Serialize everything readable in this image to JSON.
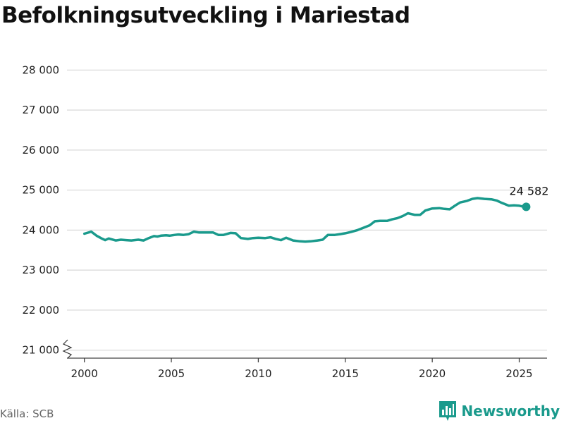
{
  "title": "Befolkningsutveckling i Mariestad",
  "source": "Källa: SCB",
  "brand": {
    "name": "Newsworthy",
    "icon": "bar-chart-icon",
    "color": "#1a9a8c"
  },
  "end_label": "24 582",
  "chart_data": {
    "type": "line",
    "title": "Befolkningsutveckling i Mariestad",
    "xlabel": "",
    "ylabel": "",
    "xlim": [
      1999.0,
      2026.6
    ],
    "ylim": [
      20800,
      28200
    ],
    "y_axis_break": true,
    "grid": "horizontal",
    "x_ticks": [
      2000,
      2005,
      2010,
      2015,
      2020,
      2025
    ],
    "x_tick_labels": [
      "2000",
      "2005",
      "2010",
      "2015",
      "2020",
      "2025"
    ],
    "y_ticks": [
      21000,
      22000,
      23000,
      24000,
      25000,
      26000,
      27000,
      28000
    ],
    "y_tick_labels": [
      "21 000",
      "22 000",
      "23 000",
      "24 000",
      "25 000",
      "26 000",
      "27 000",
      "28 000"
    ],
    "line_color": "#1a9a8c",
    "series": [
      {
        "name": "",
        "x": [
          2000.0,
          2000.4,
          2000.7,
          2001.0,
          2001.2,
          2001.4,
          2001.8,
          2002.1,
          2002.4,
          2002.7,
          2003.1,
          2003.4,
          2003.7,
          2004.0,
          2004.2,
          2004.4,
          2004.7,
          2004.9,
          2005.2,
          2005.4,
          2005.7,
          2006.0,
          2006.3,
          2006.6,
          2007.0,
          2007.4,
          2007.7,
          2008.0,
          2008.4,
          2008.7,
          2009.0,
          2009.4,
          2009.7,
          2010.0,
          2010.4,
          2010.7,
          2011.0,
          2011.3,
          2011.6,
          2012.0,
          2012.4,
          2012.7,
          2013.0,
          2013.4,
          2013.7,
          2014.0,
          2014.4,
          2014.7,
          2015.0,
          2015.3,
          2015.7,
          2016.0,
          2016.4,
          2016.7,
          2017.0,
          2017.4,
          2017.7,
          2018.0,
          2018.3,
          2018.6,
          2019.0,
          2019.3,
          2019.6,
          2020.0,
          2020.4,
          2020.7,
          2021.0,
          2021.3,
          2021.6,
          2022.0,
          2022.3,
          2022.6,
          2023.0,
          2023.4,
          2023.7,
          2024.0,
          2024.4,
          2024.7,
          2025.0,
          2025.2,
          2025.4
        ],
        "y": [
          23910,
          23960,
          23860,
          23790,
          23750,
          23790,
          23740,
          23760,
          23750,
          23740,
          23760,
          23740,
          23800,
          23850,
          23840,
          23860,
          23870,
          23860,
          23880,
          23890,
          23880,
          23900,
          23960,
          23940,
          23940,
          23940,
          23880,
          23880,
          23930,
          23920,
          23800,
          23780,
          23800,
          23810,
          23800,
          23820,
          23780,
          23750,
          23810,
          23740,
          23720,
          23710,
          23720,
          23740,
          23760,
          23880,
          23880,
          23900,
          23920,
          23950,
          24000,
          24050,
          24120,
          24220,
          24230,
          24230,
          24270,
          24300,
          24350,
          24420,
          24380,
          24380,
          24490,
          24540,
          24550,
          24530,
          24520,
          24610,
          24690,
          24730,
          24780,
          24800,
          24780,
          24770,
          24740,
          24680,
          24610,
          24620,
          24610,
          24590,
          24582
        ]
      }
    ]
  }
}
